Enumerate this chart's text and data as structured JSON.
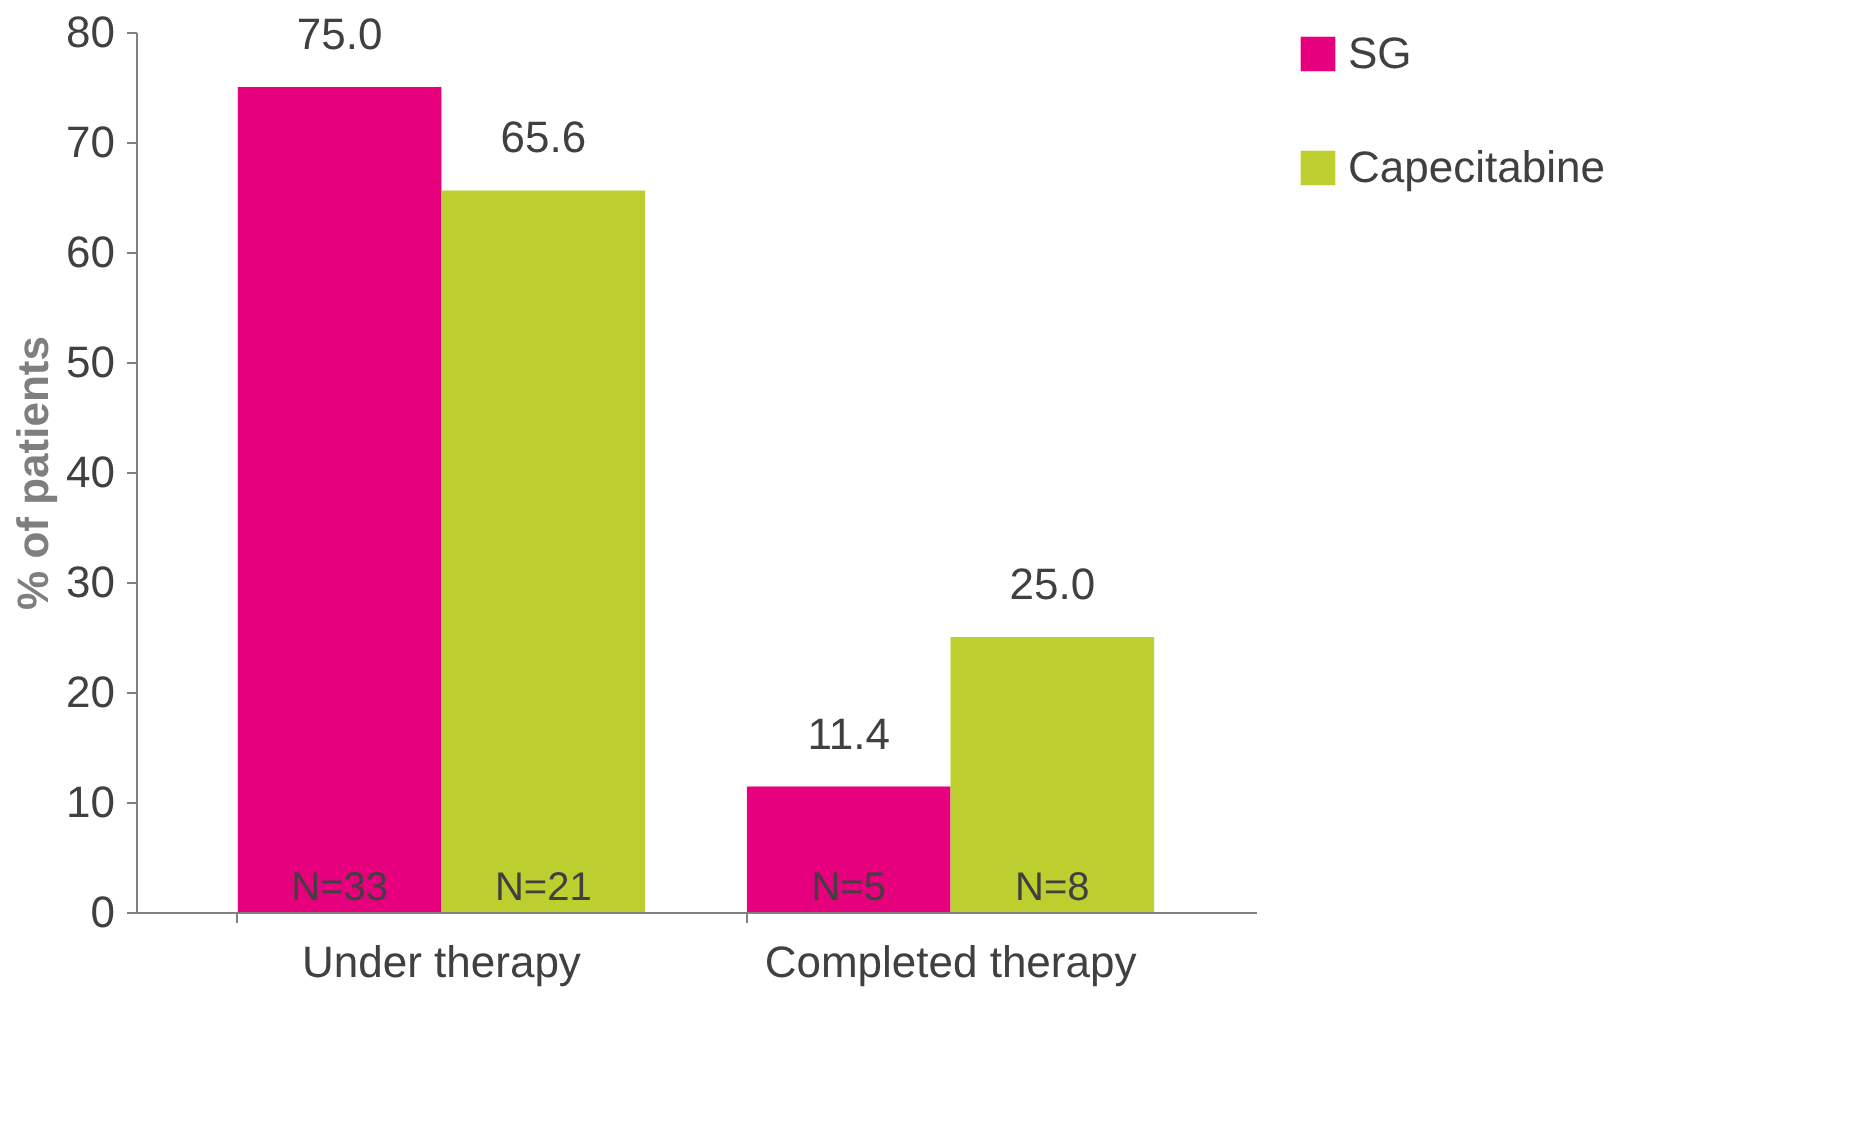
{
  "chart_data": {
    "type": "bar",
    "ylabel": "% of patients",
    "categories": [
      "Under therapy",
      "Completed therapy"
    ],
    "series": [
      {
        "name": "SG",
        "color": "#e6007e",
        "values": [
          75.0,
          11.4
        ],
        "value_labels": [
          "75.0",
          "11.4"
        ]
      },
      {
        "name": "Capecitabine",
        "color": "#bccf2f",
        "values": [
          65.6,
          25.0
        ],
        "value_labels": [
          "65.6",
          "25.0"
        ]
      }
    ],
    "annotations": [
      "N=33",
      "N=21",
      "N=5",
      "N=8"
    ],
    "ylim": [
      0,
      80
    ],
    "yticks": [
      0,
      10,
      20,
      30,
      40,
      50,
      60,
      70,
      80
    ],
    "grid": false,
    "legend": "right"
  }
}
